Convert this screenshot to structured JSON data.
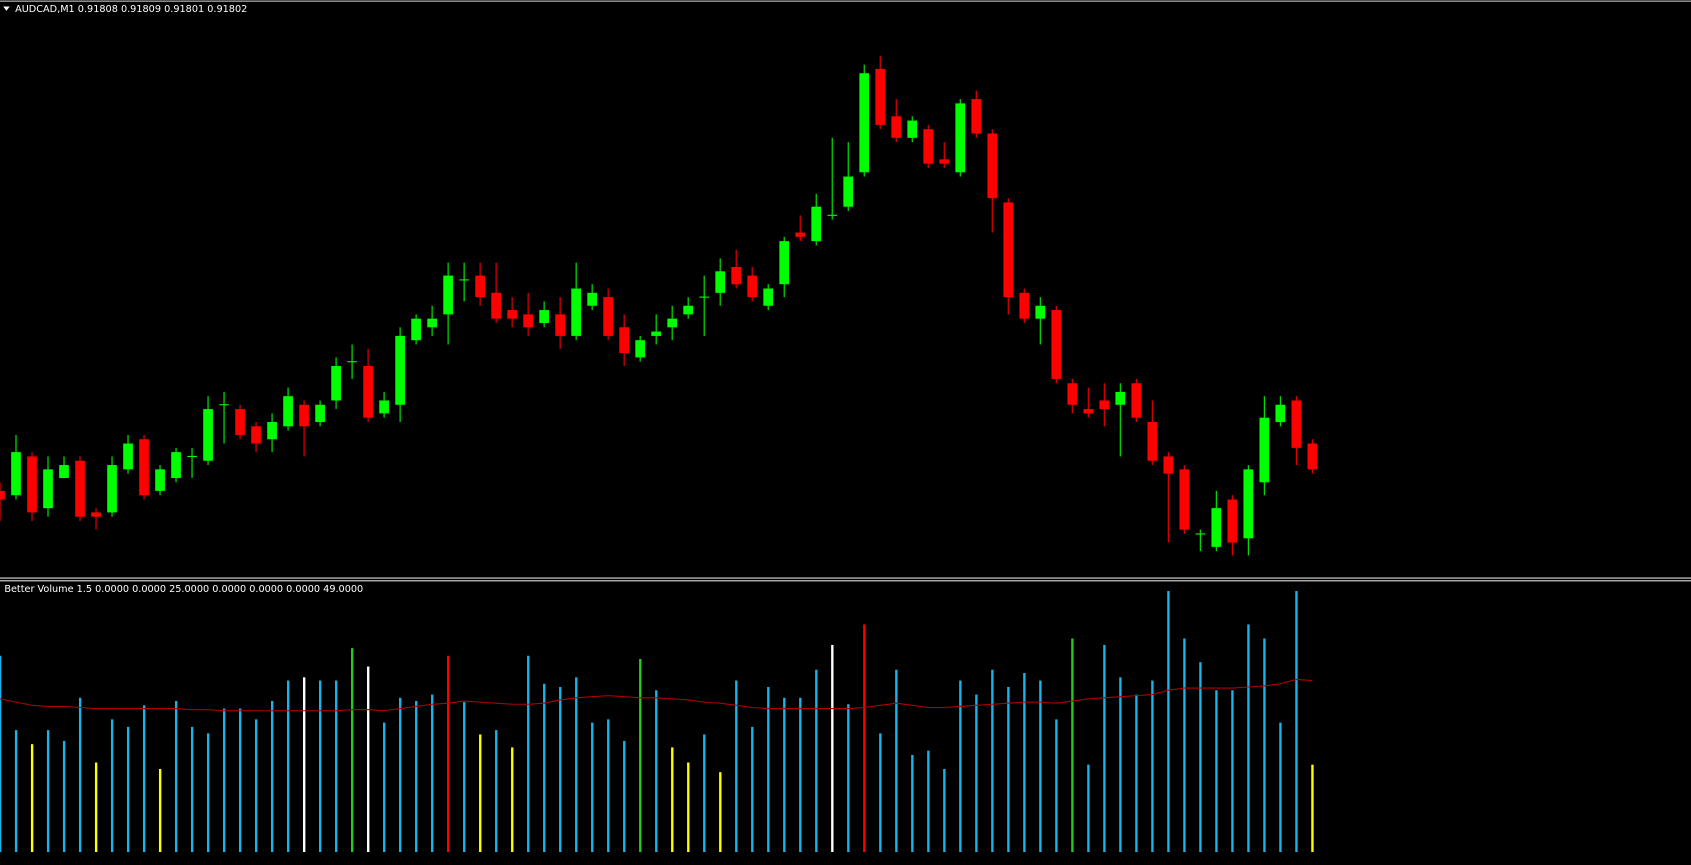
{
  "chart_data": [
    {
      "type": "candlestick",
      "title": "AUDCAD,M1  0.91808 0.91809 0.91801 0.91802",
      "up_color": "#00ff00",
      "down_color": "#ff0000",
      "ylim": [
        0.91777,
        0.91911
      ],
      "open": [
        0.91797,
        0.91796,
        0.91805,
        0.91793,
        0.918,
        0.91804,
        0.91792,
        0.91792,
        0.91802,
        0.91809,
        0.91797,
        0.918,
        0.91805,
        0.91804,
        0.91817,
        0.91816,
        0.91812,
        0.91809,
        0.91812,
        0.91817,
        0.91813,
        0.91818,
        0.91827,
        0.91826,
        0.91815,
        0.91817,
        0.91832,
        0.91835,
        0.91838,
        0.91846,
        0.91847,
        0.91843,
        0.91839,
        0.91838,
        0.91836,
        0.91838,
        0.91833,
        0.9184,
        0.91842,
        0.91835,
        0.91828,
        0.91833,
        0.91835,
        0.91838,
        0.91842,
        0.91843,
        0.91849,
        0.91847,
        0.9184,
        0.91845,
        0.91857,
        0.91855,
        0.91861,
        0.91863,
        0.91871,
        0.91895,
        0.91884,
        0.91879,
        0.91881,
        0.91874,
        0.91871,
        0.91888,
        0.9188,
        0.91864,
        0.91843,
        0.91837,
        0.91839,
        0.91822,
        0.91816,
        0.91818,
        0.91817,
        0.91822,
        0.91813,
        0.91805,
        0.91802,
        0.91787,
        0.91784,
        0.91795,
        0.91786,
        0.91799,
        0.91813,
        0.91818,
        0.91808
      ],
      "high": [
        0.91799,
        0.9181,
        0.91806,
        0.91805,
        0.91805,
        0.91805,
        0.91793,
        0.91805,
        0.9181,
        0.9181,
        0.91803,
        0.91807,
        0.91807,
        0.91819,
        0.9182,
        0.91817,
        0.91813,
        0.91815,
        0.91821,
        0.91818,
        0.91818,
        0.91828,
        0.91831,
        0.9183,
        0.9182,
        0.91835,
        0.91838,
        0.9184,
        0.9185,
        0.9185,
        0.9185,
        0.9185,
        0.91842,
        0.91843,
        0.91841,
        0.91842,
        0.9185,
        0.91845,
        0.91844,
        0.91838,
        0.91833,
        0.91838,
        0.9184,
        0.91842,
        0.91847,
        0.91851,
        0.91853,
        0.91849,
        0.91845,
        0.91856,
        0.91861,
        0.91866,
        0.91879,
        0.91878,
        0.91896,
        0.91898,
        0.91888,
        0.91884,
        0.91882,
        0.91878,
        0.91888,
        0.9189,
        0.91881,
        0.91865,
        0.91844,
        0.91842,
        0.9184,
        0.91823,
        0.91821,
        0.91822,
        0.91822,
        0.91823,
        0.91818,
        0.91806,
        0.91803,
        0.91788,
        0.91797,
        0.91796,
        0.91803,
        0.91819,
        0.91819,
        0.91819,
        0.91809
      ],
      "low": [
        0.9179,
        0.91795,
        0.9179,
        0.91791,
        0.918,
        0.9179,
        0.91788,
        0.91791,
        0.91801,
        0.91795,
        0.91796,
        0.91799,
        0.918,
        0.91803,
        0.91808,
        0.91809,
        0.91806,
        0.91806,
        0.91811,
        0.91805,
        0.91812,
        0.91816,
        0.91823,
        0.91813,
        0.91814,
        0.91813,
        0.91831,
        0.91833,
        0.91831,
        0.91841,
        0.9184,
        0.91836,
        0.91835,
        0.91833,
        0.91835,
        0.9183,
        0.91832,
        0.91839,
        0.91832,
        0.91826,
        0.91827,
        0.91831,
        0.91832,
        0.91837,
        0.91833,
        0.9184,
        0.91844,
        0.91841,
        0.91839,
        0.91842,
        0.91855,
        0.91854,
        0.9186,
        0.91862,
        0.9187,
        0.91881,
        0.91878,
        0.91878,
        0.91872,
        0.91872,
        0.9187,
        0.91879,
        0.91857,
        0.91838,
        0.91836,
        0.91831,
        0.91822,
        0.91815,
        0.91814,
        0.91812,
        0.91805,
        0.91813,
        0.91803,
        0.91785,
        0.91787,
        0.91783,
        0.91783,
        0.91782,
        0.91782,
        0.91796,
        0.91812,
        0.91803,
        0.91801
      ],
      "close": [
        0.91795,
        0.91806,
        0.91792,
        0.91802,
        0.91803,
        0.91791,
        0.91791,
        0.91803,
        0.91808,
        0.91796,
        0.91802,
        0.91806,
        0.91805,
        0.91816,
        0.91817,
        0.9181,
        0.91808,
        0.91813,
        0.91819,
        0.91812,
        0.91817,
        0.91826,
        0.91827,
        0.91814,
        0.91818,
        0.91833,
        0.91837,
        0.91837,
        0.91847,
        0.91846,
        0.91842,
        0.91837,
        0.91837,
        0.91835,
        0.91839,
        0.91833,
        0.91844,
        0.91843,
        0.91833,
        0.91829,
        0.91832,
        0.91834,
        0.91837,
        0.9184,
        0.91842,
        0.91848,
        0.91845,
        0.91842,
        0.91844,
        0.91855,
        0.91856,
        0.91863,
        0.91861,
        0.9187,
        0.91894,
        0.91882,
        0.91879,
        0.91883,
        0.91873,
        0.91873,
        0.91887,
        0.9188,
        0.91865,
        0.91842,
        0.91837,
        0.9184,
        0.91823,
        0.91817,
        0.91815,
        0.91816,
        0.9182,
        0.91814,
        0.91804,
        0.91801,
        0.91788,
        0.91787,
        0.91793,
        0.91785,
        0.91802,
        0.91814,
        0.91817,
        0.91807,
        0.91802
      ]
    },
    {
      "type": "bar",
      "title": "Better Volume 1.5 0.0000 0.0000 25.0000 0.0000 0.0000 0.0000 49.0000",
      "ylim": [
        0,
        250
      ],
      "values": [
        182,
        113,
        100,
        113,
        103,
        143,
        83,
        123,
        116,
        136,
        77,
        140,
        116,
        110,
        133,
        133,
        123,
        140,
        159,
        162,
        159,
        159,
        189,
        172,
        120,
        143,
        140,
        146,
        182,
        139,
        109,
        113,
        97,
        182,
        156,
        153,
        162,
        120,
        123,
        103,
        179,
        150,
        97,
        83,
        109,
        74,
        159,
        116,
        153,
        143,
        143,
        169,
        192,
        137,
        211,
        110,
        169,
        90,
        94,
        77,
        159,
        146,
        169,
        153,
        166,
        159,
        123,
        198,
        81,
        192,
        162,
        146,
        159,
        242,
        198,
        176,
        150,
        150,
        211,
        198,
        120,
        242,
        81
      ],
      "colors": [
        "#1ab4ec",
        "#1ab4ec",
        "#ffff00",
        "#1ab4ec",
        "#1ab4ec",
        "#1ab4ec",
        "#ffff00",
        "#1ab4ec",
        "#1ab4ec",
        "#1ab4ec",
        "#ffff00",
        "#1ab4ec",
        "#1ab4ec",
        "#1ab4ec",
        "#1ab4ec",
        "#1ab4ec",
        "#1ab4ec",
        "#1ab4ec",
        "#1ab4ec",
        "#ffffff",
        "#1ab4ec",
        "#1ab4ec",
        "#22cc22",
        "#ffffff",
        "#1ab4ec",
        "#1ab4ec",
        "#1ab4ec",
        "#1ab4ec",
        "#ff0000",
        "#1ab4ec",
        "#ffff00",
        "#1ab4ec",
        "#ffff00",
        "#1ab4ec",
        "#1ab4ec",
        "#1ab4ec",
        "#1ab4ec",
        "#1ab4ec",
        "#1ab4ec",
        "#1ab4ec",
        "#22cc22",
        "#1ab4ec",
        "#ffff00",
        "#ffff00",
        "#1ab4ec",
        "#ffff00",
        "#1ab4ec",
        "#1ab4ec",
        "#1ab4ec",
        "#1ab4ec",
        "#1ab4ec",
        "#1ab4ec",
        "#ffffff",
        "#1ab4ec",
        "#ff0000",
        "#1ab4ec",
        "#1ab4ec",
        "#1ab4ec",
        "#1ab4ec",
        "#1ab4ec",
        "#1ab4ec",
        "#1ab4ec",
        "#1ab4ec",
        "#1ab4ec",
        "#1ab4ec",
        "#1ab4ec",
        "#1ab4ec",
        "#22cc22",
        "#1ab4ec",
        "#1ab4ec",
        "#1ab4ec",
        "#1ab4ec",
        "#1ab4ec",
        "#1ab4ec",
        "#1ab4ec",
        "#1ab4ec",
        "#1ab4ec",
        "#1ab4ec",
        "#1ab4ec",
        "#1ab4ec",
        "#1ab4ec",
        "#1ab4ec",
        "#ffff00"
      ],
      "line": {
        "color": "#b00000",
        "values": [
          142,
          139,
          136,
          135,
          135,
          134,
          133,
          133,
          133,
          133,
          133,
          133,
          132,
          132,
          131,
          131,
          131,
          131,
          131,
          131,
          131,
          131,
          132,
          132,
          131,
          133,
          135,
          137,
          138,
          140,
          139,
          138,
          137,
          137,
          138,
          141,
          143,
          144,
          145,
          144,
          143,
          143,
          142,
          141,
          139,
          138,
          136,
          134,
          133,
          133,
          133,
          133,
          133,
          133,
          134,
          136,
          138,
          136,
          134,
          134,
          135,
          136,
          137,
          138,
          139,
          139,
          138,
          140,
          142,
          143,
          144,
          145,
          146,
          150,
          152,
          152,
          152,
          152,
          153,
          154,
          156,
          160,
          159
        ]
      }
    }
  ]
}
